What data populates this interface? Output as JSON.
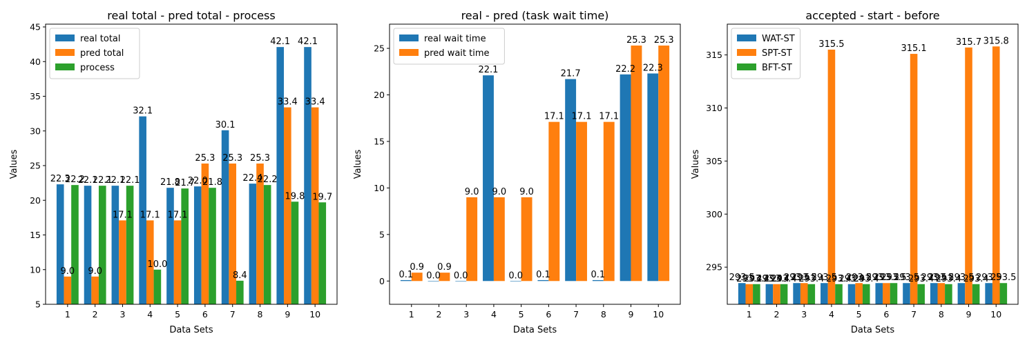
{
  "chart_data": [
    {
      "type": "bar",
      "title": "real total - pred total - process",
      "xlabel": "Data Sets",
      "ylabel": "Values",
      "categories": [
        "1",
        "2",
        "3",
        "4",
        "5",
        "6",
        "7",
        "8",
        "9",
        "10"
      ],
      "ylim": [
        5,
        45.4
      ],
      "yticks": [
        5,
        10,
        15,
        20,
        25,
        30,
        35,
        40,
        45
      ],
      "legend": "upper-left",
      "series": [
        {
          "name": "real total",
          "color": "#1f77b4",
          "values": [
            22.3,
            22.1,
            22.1,
            32.1,
            21.8,
            22.0,
            30.1,
            22.4,
            42.1,
            42.1
          ],
          "labels": [
            "22.3",
            "22.1",
            "22.1",
            "32.1",
            "21.8",
            "22.0",
            "30.1",
            "22.4",
            "42.1",
            "42.1"
          ]
        },
        {
          "name": "pred total",
          "color": "#ff7f0e",
          "values": [
            9.0,
            9.0,
            17.1,
            17.1,
            17.1,
            25.3,
            25.3,
            25.3,
            33.4,
            33.4
          ],
          "labels": [
            "9.0",
            "9.0",
            "17.1",
            "17.1",
            "17.1",
            "25.3",
            "25.3",
            "25.3",
            "33.4",
            "33.4"
          ]
        },
        {
          "name": "process",
          "color": "#2ca02c",
          "values": [
            22.2,
            22.1,
            22.1,
            10.0,
            21.7,
            21.8,
            8.4,
            22.2,
            19.8,
            19.7
          ],
          "labels": [
            "22.2",
            "22.1",
            "22.1",
            "10.0",
            "21.7",
            "21.8",
            "8.4",
            "22.2",
            "19.8",
            "19.7"
          ]
        }
      ]
    },
    {
      "type": "bar",
      "title": "real - pred (task wait time)",
      "xlabel": "Data Sets",
      "ylabel": "Values",
      "categories": [
        "1",
        "2",
        "3",
        "4",
        "5",
        "6",
        "7",
        "8",
        "9",
        "10"
      ],
      "ylim": [
        -2.5,
        27.6
      ],
      "yticks": [
        0,
        5,
        10,
        15,
        20,
        25
      ],
      "legend": "upper-left",
      "series": [
        {
          "name": "real wait time",
          "color": "#1f77b4",
          "values": [
            0.1,
            0.0,
            0.0,
            22.1,
            0.0,
            0.1,
            21.7,
            0.1,
            22.2,
            22.3
          ],
          "labels": [
            "0.1",
            "0.0",
            "0.0",
            "22.1",
            "0.0",
            "0.1",
            "21.7",
            "0.1",
            "22.2",
            "22.3"
          ]
        },
        {
          "name": "pred wait time",
          "color": "#ff7f0e",
          "values": [
            0.9,
            0.9,
            9.0,
            9.0,
            9.0,
            17.1,
            17.1,
            17.1,
            25.3,
            25.3
          ],
          "labels": [
            "0.9",
            "0.9",
            "9.0",
            "9.0",
            "9.0",
            "17.1",
            "17.1",
            "17.1",
            "25.3",
            "25.3"
          ]
        }
      ]
    },
    {
      "type": "bar",
      "title": "accepted - start - before",
      "xlabel": "Data Sets",
      "ylabel": "Values",
      "categories": [
        "1",
        "2",
        "3",
        "4",
        "5",
        "6",
        "7",
        "8",
        "9",
        "10"
      ],
      "ylim": [
        291.5,
        317.9
      ],
      "yticks": [
        295,
        300,
        305,
        310,
        315
      ],
      "legend": "upper-left",
      "series": [
        {
          "name": "WAT-ST",
          "color": "#1f77b4",
          "values": [
            293.5,
            293.4,
            293.5,
            293.5,
            293.4,
            293.5,
            293.5,
            293.5,
            293.5,
            293.5
          ],
          "labels": [
            "293.5",
            "293.4",
            "293.5",
            "293.5",
            "293.4",
            "293.5",
            "293.5",
            "293.5",
            "293.5",
            "293.5"
          ]
        },
        {
          "name": "SPT-ST",
          "color": "#ff7f0e",
          "values": [
            293.4,
            293.4,
            293.5,
            315.5,
            293.5,
            293.5,
            315.1,
            293.5,
            315.7,
            315.8
          ],
          "labels": [
            "293.4",
            "293.4",
            "293.5",
            "315.5",
            "293.5",
            "293.5",
            "315.1",
            "293.5",
            "315.7",
            "315.8"
          ]
        },
        {
          "name": "BFT-ST",
          "color": "#2ca02c",
          "values": [
            293.4,
            293.4,
            293.4,
            293.4,
            293.4,
            293.5,
            293.4,
            293.4,
            293.4,
            293.5
          ],
          "labels": [
            "293.4",
            "293.4",
            "293.4",
            "293.4",
            "293.4",
            "293.5",
            "293.4",
            "293.4",
            "293.4",
            "293.5"
          ]
        }
      ]
    }
  ]
}
